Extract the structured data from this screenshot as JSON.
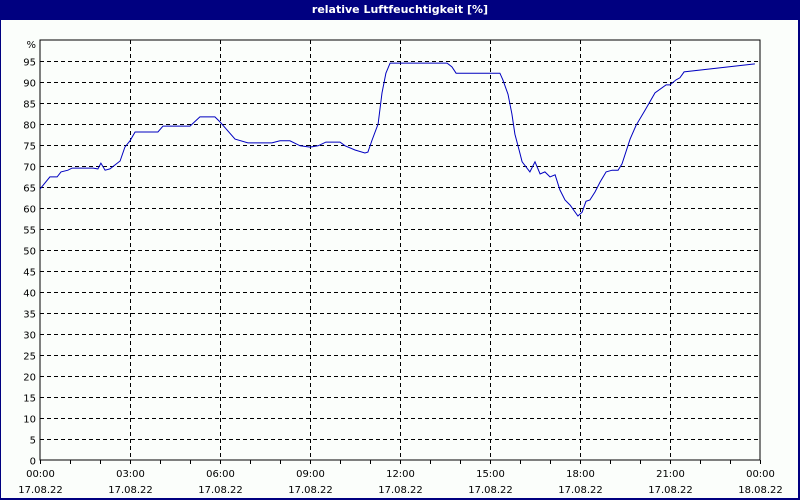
{
  "window": {
    "title": "relative Luftfeuchtigkeit [%]"
  },
  "colors": {
    "titlebar": "#000080",
    "background": "#fbfefb",
    "line": "#0000c0",
    "grid": "#000000"
  },
  "chart_data": {
    "type": "line",
    "title": "relative Luftfeuchtigkeit [%]",
    "xlabel": "",
    "ylabel": "%",
    "ylim": [
      0,
      100
    ],
    "xlim_hours": [
      0,
      24
    ],
    "y_ticks": [
      0,
      5,
      10,
      15,
      20,
      25,
      30,
      35,
      40,
      45,
      50,
      55,
      60,
      65,
      70,
      75,
      80,
      85,
      90,
      95
    ],
    "y_unit_label": "%",
    "x_ticks": [
      {
        "time": "00:00",
        "date": "17.08.22",
        "h": 0
      },
      {
        "time": "03:00",
        "date": "17.08.22",
        "h": 3
      },
      {
        "time": "06:00",
        "date": "17.08.22",
        "h": 6
      },
      {
        "time": "09:00",
        "date": "17.08.22",
        "h": 9
      },
      {
        "time": "12:00",
        "date": "17.08.22",
        "h": 12
      },
      {
        "time": "15:00",
        "date": "17.08.22",
        "h": 15
      },
      {
        "time": "18:00",
        "date": "17.08.22",
        "h": 18
      },
      {
        "time": "21:00",
        "date": "17.08.22",
        "h": 21
      },
      {
        "time": "00:00",
        "date": "18.08.22",
        "h": 24
      }
    ],
    "grid": true,
    "series": [
      {
        "name": "relative Luftfeuchtigkeit",
        "x_hours": [
          0,
          0.33,
          0.57,
          0.7,
          0.93,
          1.07,
          1.77,
          1.93,
          2.03,
          2.17,
          2.33,
          2.67,
          2.83,
          3.0,
          3.17,
          3.93,
          4.1,
          5.0,
          5.33,
          5.83,
          6.0,
          6.5,
          6.93,
          7.73,
          8.0,
          8.33,
          8.67,
          9.0,
          9.27,
          9.53,
          10.0,
          10.17,
          10.5,
          10.83,
          10.93,
          11.07,
          11.27,
          11.4,
          11.53,
          11.67,
          13.57,
          13.73,
          13.87,
          15.33,
          15.43,
          15.6,
          15.73,
          15.83,
          15.97,
          16.07,
          16.33,
          16.5,
          16.67,
          16.83,
          17.0,
          17.17,
          17.33,
          17.5,
          17.67,
          17.93,
          18.07,
          18.2,
          18.33,
          18.5,
          18.67,
          18.87,
          19.07,
          19.27,
          19.4,
          19.67,
          19.87,
          20.17,
          20.5,
          20.87,
          21.0,
          21.2,
          21.33,
          21.47,
          23.83
        ],
        "values": [
          64.5,
          67.4,
          67.4,
          68.6,
          69.0,
          69.5,
          69.5,
          69.3,
          70.7,
          69.0,
          69.3,
          71.2,
          74.5,
          76.0,
          78.1,
          78.1,
          79.5,
          79.5,
          81.7,
          81.7,
          80.5,
          76.4,
          75.5,
          75.5,
          76.0,
          76.0,
          74.8,
          74.5,
          74.8,
          75.7,
          75.7,
          74.8,
          73.8,
          73.1,
          73.3,
          76.2,
          80.0,
          87.4,
          92.1,
          94.5,
          94.5,
          93.6,
          92.1,
          92.1,
          90.5,
          87.1,
          82.4,
          77.6,
          73.8,
          71.0,
          68.6,
          71.0,
          68.1,
          68.6,
          67.4,
          67.9,
          64.3,
          61.9,
          60.7,
          58.1,
          59.0,
          61.6,
          61.9,
          63.8,
          66.2,
          68.6,
          69.0,
          69.0,
          70.5,
          76.4,
          79.7,
          83.3,
          87.4,
          89.3,
          89.3,
          90.5,
          91.0,
          92.4,
          94.3
        ]
      }
    ]
  }
}
